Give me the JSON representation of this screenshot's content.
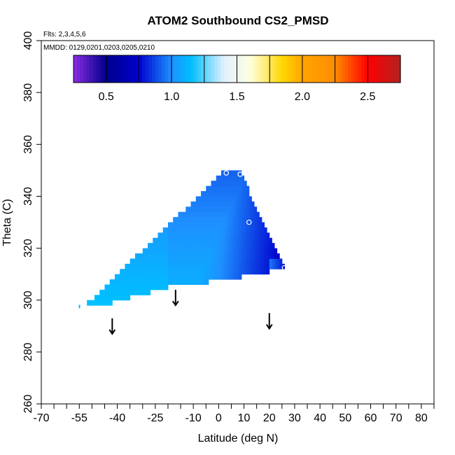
{
  "chart_data": {
    "type": "heatmap",
    "title": "ATOM2 Southbound CS2_PMSD",
    "annotations": {
      "flights": "Flts: 2,3,4,5,6",
      "dates": "MMDD: 0129,0201,0203,0205,0210"
    },
    "xlabel": "Latitude (deg N)",
    "ylabel": "Theta (C)",
    "xlim": [
      -70,
      85
    ],
    "ylim": [
      260,
      400
    ],
    "x_ticks": [
      -70,
      -55,
      -40,
      -25,
      -10,
      0,
      10,
      20,
      30,
      40,
      50,
      60,
      70,
      80
    ],
    "x_tick_labels": [
      "-70",
      "-55",
      "-40",
      "-25",
      "-10",
      "0",
      "10",
      "20",
      "30",
      "40",
      "50",
      "60",
      "70",
      "80"
    ],
    "x_minor_ticks": [
      -65,
      -60,
      -50,
      -45,
      -35,
      -30,
      -20,
      -15,
      -5,
      5,
      15,
      25,
      35,
      45,
      55,
      65,
      75,
      85
    ],
    "y_ticks": [
      260,
      280,
      300,
      320,
      340,
      360,
      380,
      400
    ],
    "y_tick_labels": [
      "260",
      "280",
      "300",
      "320",
      "340",
      "360",
      "380",
      "400"
    ],
    "colorbar": {
      "range": [
        0.25,
        2.75
      ],
      "ticks": [
        0.5,
        1.0,
        1.5,
        2.0,
        2.5
      ],
      "tick_labels": [
        "0.5",
        "1.0",
        "1.5",
        "2.0",
        "2.5"
      ],
      "stops": [
        {
          "value": 0.25,
          "color": "#8a2be2"
        },
        {
          "value": 0.5,
          "color": "#00008b"
        },
        {
          "value": 0.75,
          "color": "#0000cd"
        },
        {
          "value": 1.0,
          "color": "#1e90ff"
        },
        {
          "value": 1.15,
          "color": "#00bfff"
        },
        {
          "value": 1.4,
          "color": "#e0f0ff"
        },
        {
          "value": 1.6,
          "color": "#ffffe0"
        },
        {
          "value": 1.85,
          "color": "#ffd700"
        },
        {
          "value": 2.0,
          "color": "#ffa500"
        },
        {
          "value": 2.25,
          "color": "#ff8c00"
        },
        {
          "value": 2.5,
          "color": "#ff0000"
        },
        {
          "value": 2.75,
          "color": "#b22222"
        }
      ]
    },
    "data_region": {
      "description_vertices": [
        [
          -55,
          297
        ],
        [
          3,
          350
        ],
        [
          26,
          312
        ],
        [
          -20,
          306
        ]
      ],
      "value_range": [
        0.7,
        1.2
      ]
    },
    "markers": [
      {
        "lat": 3,
        "theta": 349
      },
      {
        "lat": 8.5,
        "theta": 348.5
      },
      {
        "lat": 12,
        "theta": 330
      },
      {
        "lat": 26,
        "theta": 312.5
      }
    ],
    "arrows": [
      {
        "lat": -42,
        "theta_top": 287,
        "theta_bottom": 293
      },
      {
        "lat": -17,
        "theta_top": 298,
        "theta_bottom": 304
      },
      {
        "lat": 20,
        "theta_top": 289,
        "theta_bottom": 295
      }
    ]
  }
}
